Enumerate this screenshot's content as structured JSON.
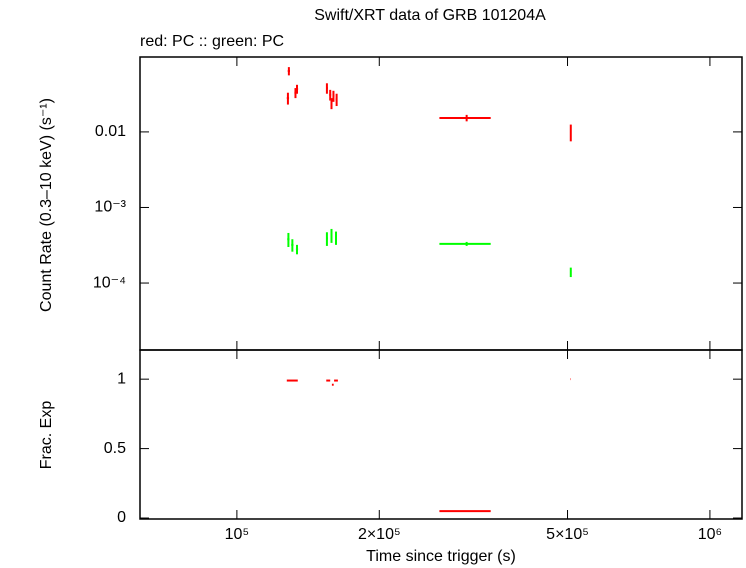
{
  "chart_data": [
    {
      "type": "scatter",
      "title": "Swift/XRT data of GRB 101204A",
      "subtitle": "red: PC  :: green: PC",
      "ylabel": "Count Rate (0.3–10 keV) (s⁻¹)",
      "xlog": true,
      "ylog": true,
      "xlim": [
        62400,
        1169000
      ],
      "ylim": [
        1.3e-05,
        0.098
      ],
      "yticks": [
        0.01,
        {
          "value": 0.001,
          "label": "10⁻³"
        },
        {
          "value": 0.0001,
          "label": "10⁻⁴"
        }
      ],
      "series": [
        {
          "color": "#ff0000",
          "x": [
            128800,
            128200,
            133000,
            134000,
            155000,
            157500,
            160000,
            162500,
            158500,
            306000,
            508000
          ],
          "xerr": [
            700,
            700,
            700,
            700,
            700,
            700,
            700,
            700,
            700,
            38000,
            700
          ],
          "values": [
            0.064,
            0.028,
            0.033,
            0.037,
            0.038,
            0.031,
            0.03,
            0.027,
            0.024,
            0.0153,
            0.01
          ],
          "yerr": [
            0.008,
            0.005,
            0.005,
            0.005,
            0.006,
            0.005,
            0.005,
            0.005,
            0.004,
            0.0015,
            0.0025
          ]
        },
        {
          "color": "#00ff00",
          "x": [
            128500,
            131000,
            134000,
            155000,
            158500,
            162000,
            306000,
            508000
          ],
          "xerr": [
            700,
            700,
            700,
            700,
            700,
            700,
            38000,
            700
          ],
          "values": [
            0.00038,
            0.00032,
            0.00028,
            0.00039,
            0.00043,
            0.0004,
            0.00033,
            0.00014
          ],
          "yerr": [
            8e-05,
            6e-05,
            4e-05,
            8e-05,
            9e-05,
            8e-05,
            2e-05,
            2e-05
          ]
        }
      ]
    },
    {
      "type": "scatter",
      "ylabel": "Frac. Exp",
      "xlabel": "Time since trigger (s)",
      "xlog": true,
      "xlim": [
        62400,
        1169000
      ],
      "ylim": [
        -0.007,
        1.21
      ],
      "xticks": [
        {
          "value": 100000,
          "label": "10⁵"
        },
        {
          "value": 200000,
          "label": "2×10⁵"
        },
        {
          "value": 500000,
          "label": "5×10⁵"
        },
        {
          "value": 1000000,
          "label": "10⁶"
        }
      ],
      "yticks": [
        1,
        0.5,
        0
      ],
      "series": [
        {
          "color": "#ff0000",
          "x": [
            131000,
            156000,
            159500,
            162000,
            306000,
            508000
          ],
          "xerr": [
            3500,
            1500,
            700,
            1500,
            38000,
            500
          ],
          "values": [
            0.99,
            0.99,
            0.96,
            0.99,
            0.05,
            1.0
          ]
        }
      ]
    }
  ]
}
